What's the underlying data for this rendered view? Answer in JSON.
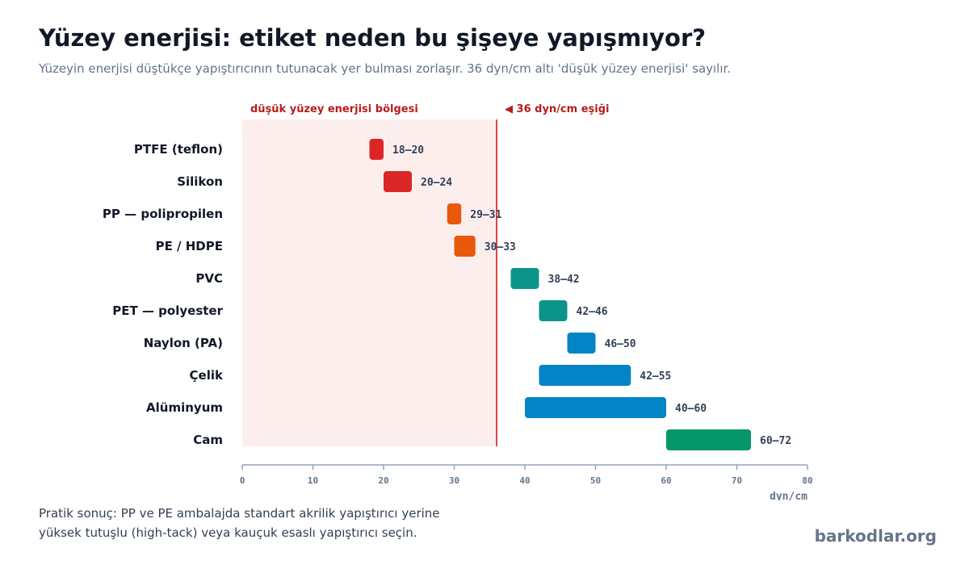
{
  "header": {
    "title": "Yüzey enerjisi: etiket neden bu şişeye yapışmıyor?",
    "subtitle": "Yüzeyin enerjisi düştükçe yapıştırıcının tutunacak yer bulması zorlaşır. 36 dyn/cm altı 'düşük yüzey enerjisi' sayılır."
  },
  "chart_data": {
    "type": "bar",
    "orientation": "horizontal-range",
    "categories": [
      "PTFE (teflon)",
      "Silikon",
      "PP — polipropilen",
      "PE / HDPE",
      "PVC",
      "PET — polyester",
      "Naylon (PA)",
      "Çelik",
      "Alüminyum",
      "Cam"
    ],
    "ranges": [
      [
        18,
        20
      ],
      [
        20,
        24
      ],
      [
        29,
        31
      ],
      [
        30,
        33
      ],
      [
        38,
        42
      ],
      [
        42,
        46
      ],
      [
        46,
        50
      ],
      [
        42,
        55
      ],
      [
        40,
        60
      ],
      [
        60,
        72
      ]
    ],
    "range_labels": [
      "18–20",
      "20–24",
      "29–31",
      "30–33",
      "38–42",
      "42–46",
      "46–50",
      "42–55",
      "40–60",
      "60–72"
    ],
    "bar_colors": [
      "#dc2626",
      "#dc2626",
      "#ea580c",
      "#ea580c",
      "#0d9488",
      "#0d9488",
      "#0284c7",
      "#0284c7",
      "#0284c7",
      "#059669"
    ],
    "xlim": [
      0,
      80
    ],
    "xticks": [
      0,
      10,
      20,
      30,
      40,
      50,
      60,
      70,
      80
    ],
    "xlabel": "dyn/cm",
    "threshold": 36,
    "threshold_label": "◀ 36 dyn/cm eşiği",
    "low_zone_label": "düşük yüzey enerjisi bölgesi",
    "colors": {
      "low_zone": "#fdeeee",
      "threshold": "#dc2626",
      "axis": "#94a3b8"
    }
  },
  "footer": {
    "note_line1": "Pratik sonuç: PP ve PE ambalajda standart akrilik yapıştırıcı yerine",
    "note_line2": "yüksek tutuşlu (high-tack) veya kauçuk esaslı yapıştırıcı seçin.",
    "brand": "barkodlar.org"
  }
}
